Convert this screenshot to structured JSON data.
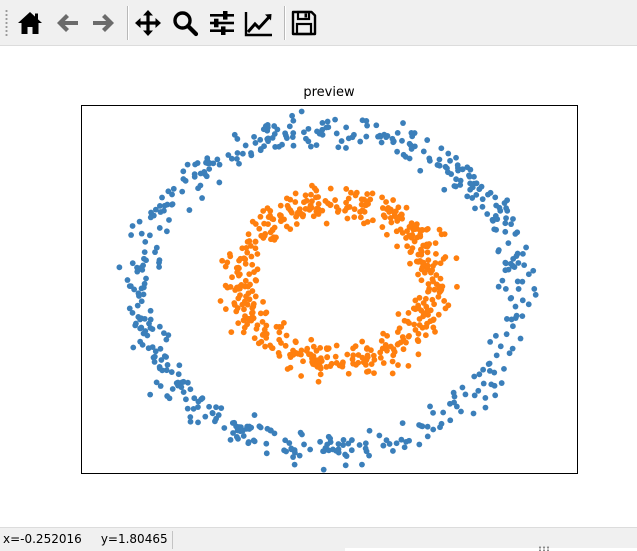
{
  "toolbar": {
    "buttons": [
      {
        "name": "home-button",
        "icon": "home-icon",
        "tooltip": "Reset original view"
      },
      {
        "name": "back-button",
        "icon": "arrow-left-icon",
        "tooltip": "Back to previous view"
      },
      {
        "name": "forward-button",
        "icon": "arrow-right-icon",
        "tooltip": "Forward to next view"
      },
      {
        "name": "pan-button",
        "icon": "move-icon",
        "tooltip": "Pan axes"
      },
      {
        "name": "zoom-button",
        "icon": "magnifier-icon",
        "tooltip": "Zoom to rectangle"
      },
      {
        "name": "configure-subplots-button",
        "icon": "sliders-icon",
        "tooltip": "Configure subplots"
      },
      {
        "name": "edit-axis-button",
        "icon": "line-chart-icon",
        "tooltip": "Edit axis, curve and image parameters"
      },
      {
        "name": "save-button",
        "icon": "floppy-disk-icon",
        "tooltip": "Save the figure"
      }
    ],
    "icon_color": "#000000"
  },
  "status": {
    "coords": "x=-0.252016     y=1.80465"
  },
  "chart_data": {
    "type": "scatter",
    "title": "preview",
    "xlabel": "",
    "ylabel": "",
    "xlim": [
      -1.3,
      1.3
    ],
    "ylim": [
      -1.15,
      1.15
    ],
    "axes_visible": false,
    "grid": false,
    "legend": "none",
    "series": [
      {
        "shape": "outer-ring",
        "color": "#3b7fba",
        "count": 500,
        "radius": 1.0,
        "center": [
          0,
          0
        ],
        "noise": 0.05
      },
      {
        "shape": "inner-ring",
        "color": "#ff7f0e",
        "count": 500,
        "radius": 0.5,
        "center": [
          0.05,
          0.05
        ],
        "noise": 0.05
      }
    ]
  }
}
